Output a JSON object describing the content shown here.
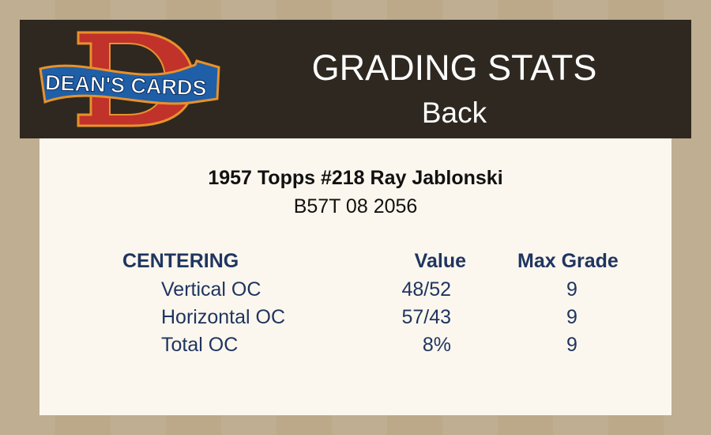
{
  "header": {
    "logo_text": "DEAN'S CARDS",
    "title": "GRADING STATS",
    "subtitle": "Back"
  },
  "card": {
    "title": "1957 Topps #218 Ray Jablonski",
    "id": "B57T 08 2056"
  },
  "table": {
    "section": "CENTERING",
    "col_value": "Value",
    "col_max": "Max Grade",
    "rows": [
      {
        "label": "Vertical OC",
        "value": "48/52",
        "max": "9"
      },
      {
        "label": "Horizontal OC",
        "value": "57/43",
        "max": "9"
      },
      {
        "label": "Total OC",
        "value": "8%",
        "max": "9"
      }
    ]
  },
  "colors": {
    "header_bg": "#2e2820",
    "panel_bg": "#fcf7ee",
    "text_navy": "#1f3560",
    "logo_red": "#c0322a",
    "logo_blue": "#1f5fa8"
  }
}
